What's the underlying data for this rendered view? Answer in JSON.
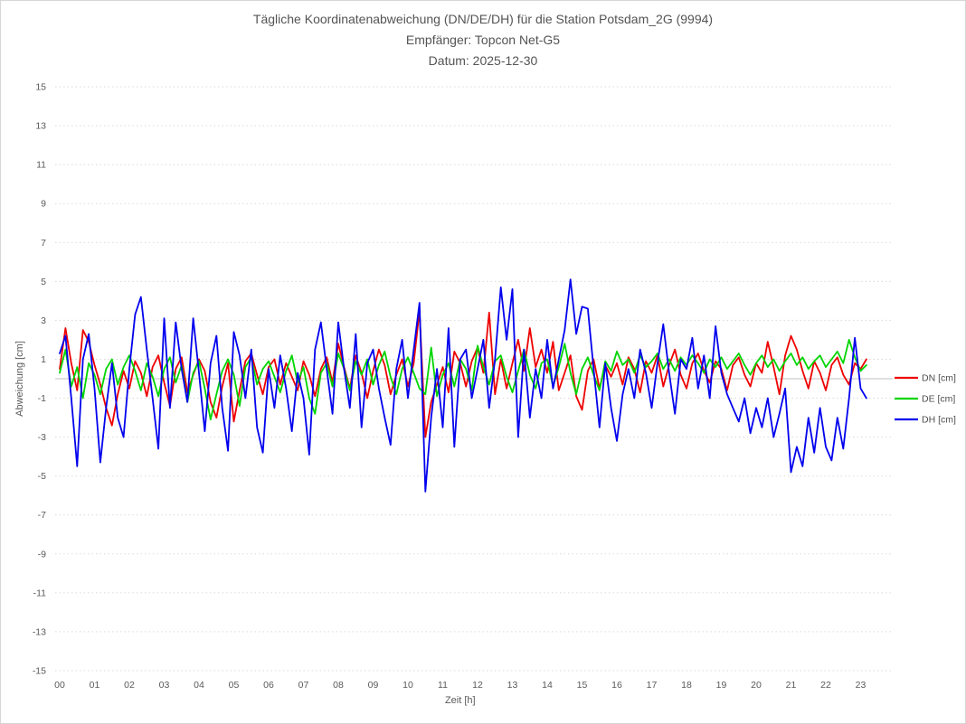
{
  "chart_data": {
    "type": "line",
    "title": "Tägliche Koordinatenabweichung (DN/DE/DH) für die Station Potsdam_2G (9994)",
    "subtitle_receiver": "Empfänger: Topcon Net-G5",
    "subtitle_date": "Datum: 2025-12-30",
    "xlabel": "Zeit [h]",
    "ylabel": "Abweichung [cm]",
    "x_tick_labels": [
      "00",
      "01",
      "02",
      "03",
      "04",
      "05",
      "06",
      "07",
      "08",
      "09",
      "10",
      "11",
      "12",
      "13",
      "14",
      "15",
      "16",
      "17",
      "18",
      "19",
      "20",
      "21",
      "22",
      "23"
    ],
    "y_ticks": [
      -15,
      -13,
      -11,
      -9,
      -7,
      -5,
      -3,
      -1,
      1,
      3,
      5,
      7,
      9,
      11,
      13,
      15
    ],
    "ylim": [
      -15,
      15
    ],
    "xlim_hours": [
      0,
      23.9
    ],
    "sample_interval_minutes": 10,
    "grid": "horizontal-dotted",
    "zero_line": true,
    "legend_position": "right",
    "axis_text_color": "#595959",
    "grid_color": "#d9d9d9",
    "zero_line_color": "#c0c0c0",
    "series": [
      {
        "name": "DN [cm]",
        "color": "#ee0000",
        "values": [
          0.5,
          2.6,
          0.8,
          -0.6,
          2.5,
          1.9,
          0.7,
          -0.3,
          -1.5,
          -2.4,
          -0.8,
          0.4,
          -0.5,
          0.9,
          0.3,
          -0.9,
          0.6,
          1.2,
          -0.2,
          -1.4,
          0.5,
          1.1,
          -0.7,
          0.2,
          1.0,
          0.4,
          -1.2,
          -2.0,
          -0.4,
          0.8,
          -2.2,
          -0.6,
          0.9,
          1.3,
          0.2,
          -0.8,
          0.6,
          1.0,
          -0.3,
          0.8,
          0.1,
          -0.6,
          0.9,
          0.2,
          -0.9,
          0.5,
          1.1,
          -0.2,
          1.8,
          0.6,
          -0.5,
          1.2,
          0.3,
          -1.0,
          0.4,
          1.5,
          0.7,
          -0.8,
          0.2,
          1.0,
          -0.4,
          0.8,
          3.5,
          -3.0,
          -1.2,
          -0.3,
          0.6,
          -0.7,
          1.4,
          0.8,
          -0.4,
          0.9,
          1.6,
          0.3,
          3.4,
          -0.8,
          1.0,
          -0.5,
          0.8,
          2.0,
          0.4,
          2.6,
          0.6,
          1.5,
          0.3,
          1.9,
          -0.6,
          0.3,
          1.2,
          -0.9,
          -1.6,
          0.4,
          1.0,
          -0.5,
          0.7,
          0.1,
          0.8,
          -0.3,
          1.1,
          0.5,
          -0.7,
          0.9,
          0.3,
          1.2,
          -0.4,
          0.7,
          1.5,
          0.2,
          -0.5,
          0.8,
          1.3,
          0.4,
          -0.2,
          0.9,
          0.5,
          -0.6,
          0.7,
          1.1,
          0.2,
          -0.4,
          0.8,
          0.3,
          1.9,
          0.6,
          -0.8,
          1.2,
          2.2,
          1.5,
          0.4,
          -0.5,
          0.9,
          0.3,
          -0.6,
          0.7,
          1.1,
          0.2,
          -0.3,
          0.8,
          0.5,
          1.0
        ]
      },
      {
        "name": "DE [cm]",
        "color": "#00d500",
        "values": [
          0.3,
          1.5,
          -0.4,
          0.6,
          -1.0,
          0.8,
          0.2,
          -0.8,
          0.5,
          1.0,
          -0.3,
          0.6,
          1.2,
          0.4,
          -0.6,
          0.8,
          0.1,
          -0.9,
          0.5,
          1.1,
          -0.2,
          0.7,
          -1.2,
          0.3,
          0.9,
          -0.5,
          -2.1,
          -0.8,
          0.4,
          1.0,
          0.2,
          -1.4,
          0.6,
          1.1,
          -0.3,
          0.5,
          0.9,
          0.1,
          -0.7,
          0.4,
          1.2,
          -0.2,
          0.6,
          -1.0,
          -1.8,
          0.3,
          0.8,
          -0.4,
          1.3,
          0.5,
          -0.6,
          0.9,
          0.2,
          1.0,
          -0.3,
          0.7,
          1.4,
          0.1,
          -0.8,
          0.5,
          1.1,
          0.3,
          -0.5,
          -0.8,
          1.6,
          -0.9,
          0.2,
          0.8,
          -0.4,
          1.0,
          0.5,
          -0.6,
          1.7,
          0.6,
          -0.3,
          0.9,
          1.2,
          0.1,
          -0.7,
          0.4,
          1.5,
          0.2,
          -0.5,
          0.8,
          1.0,
          -0.4,
          0.6,
          1.8,
          0.3,
          -0.8,
          0.5,
          1.1,
          0.2,
          -0.6,
          0.9,
          0.4,
          1.4,
          0.7,
          1.0,
          0.3,
          1.2,
          0.6,
          0.9,
          1.3,
          0.5,
          1.0,
          0.4,
          1.1,
          0.7,
          1.2,
          0.8,
          0.3,
          1.0,
          0.6,
          1.1,
          0.5,
          0.9,
          1.3,
          0.7,
          0.2,
          0.8,
          1.2,
          0.6,
          1.0,
          0.4,
          0.9,
          1.3,
          0.7,
          1.1,
          0.5,
          0.9,
          1.2,
          0.6,
          1.0,
          1.4,
          0.8,
          2.0,
          1.1,
          0.4,
          0.7
        ]
      },
      {
        "name": "DH [cm]",
        "color": "#0000ee",
        "values": [
          1.3,
          2.2,
          -1.0,
          -4.5,
          1.0,
          2.3,
          -0.5,
          -4.3,
          -1.5,
          0.8,
          -2.0,
          -3.0,
          0.5,
          3.3,
          4.2,
          1.5,
          -1.0,
          -3.6,
          3.1,
          -1.5,
          2.9,
          0.5,
          -1.2,
          3.1,
          0.3,
          -2.7,
          0.8,
          2.2,
          -1.5,
          -3.7,
          2.4,
          1.2,
          -1.0,
          1.5,
          -2.5,
          -3.8,
          0.5,
          -1.5,
          1.2,
          -0.5,
          -2.7,
          0.3,
          -1.0,
          -3.9,
          1.5,
          2.9,
          0.5,
          -1.8,
          2.9,
          0.5,
          -1.5,
          2.3,
          -2.5,
          0.8,
          1.5,
          -0.5,
          -2.0,
          -3.4,
          0.5,
          2.0,
          -1.0,
          1.5,
          3.9,
          -5.8,
          -2.0,
          0.5,
          -2.5,
          2.6,
          -3.5,
          1.0,
          1.5,
          -1.0,
          0.5,
          2.0,
          -1.5,
          1.0,
          4.7,
          2.0,
          4.6,
          -3.0,
          1.5,
          -2.0,
          0.5,
          -1.0,
          2.0,
          -0.5,
          1.0,
          2.5,
          5.1,
          2.3,
          3.7,
          3.6,
          0.5,
          -2.5,
          0.8,
          -1.5,
          -3.2,
          -0.8,
          0.5,
          -1.0,
          1.5,
          0.3,
          -1.5,
          0.8,
          2.8,
          0.3,
          -1.8,
          1.0,
          0.5,
          2.1,
          -0.5,
          1.2,
          -1.0,
          2.7,
          0.3,
          -0.8,
          -1.5,
          -2.2,
          -1.0,
          -2.8,
          -1.5,
          -2.5,
          -1.0,
          -3.0,
          -1.8,
          -0.5,
          -4.8,
          -3.5,
          -4.5,
          -2.0,
          -3.8,
          -1.5,
          -3.5,
          -4.2,
          -2.0,
          -3.6,
          -1.0,
          2.1,
          -0.5,
          -1.0
        ]
      }
    ]
  }
}
